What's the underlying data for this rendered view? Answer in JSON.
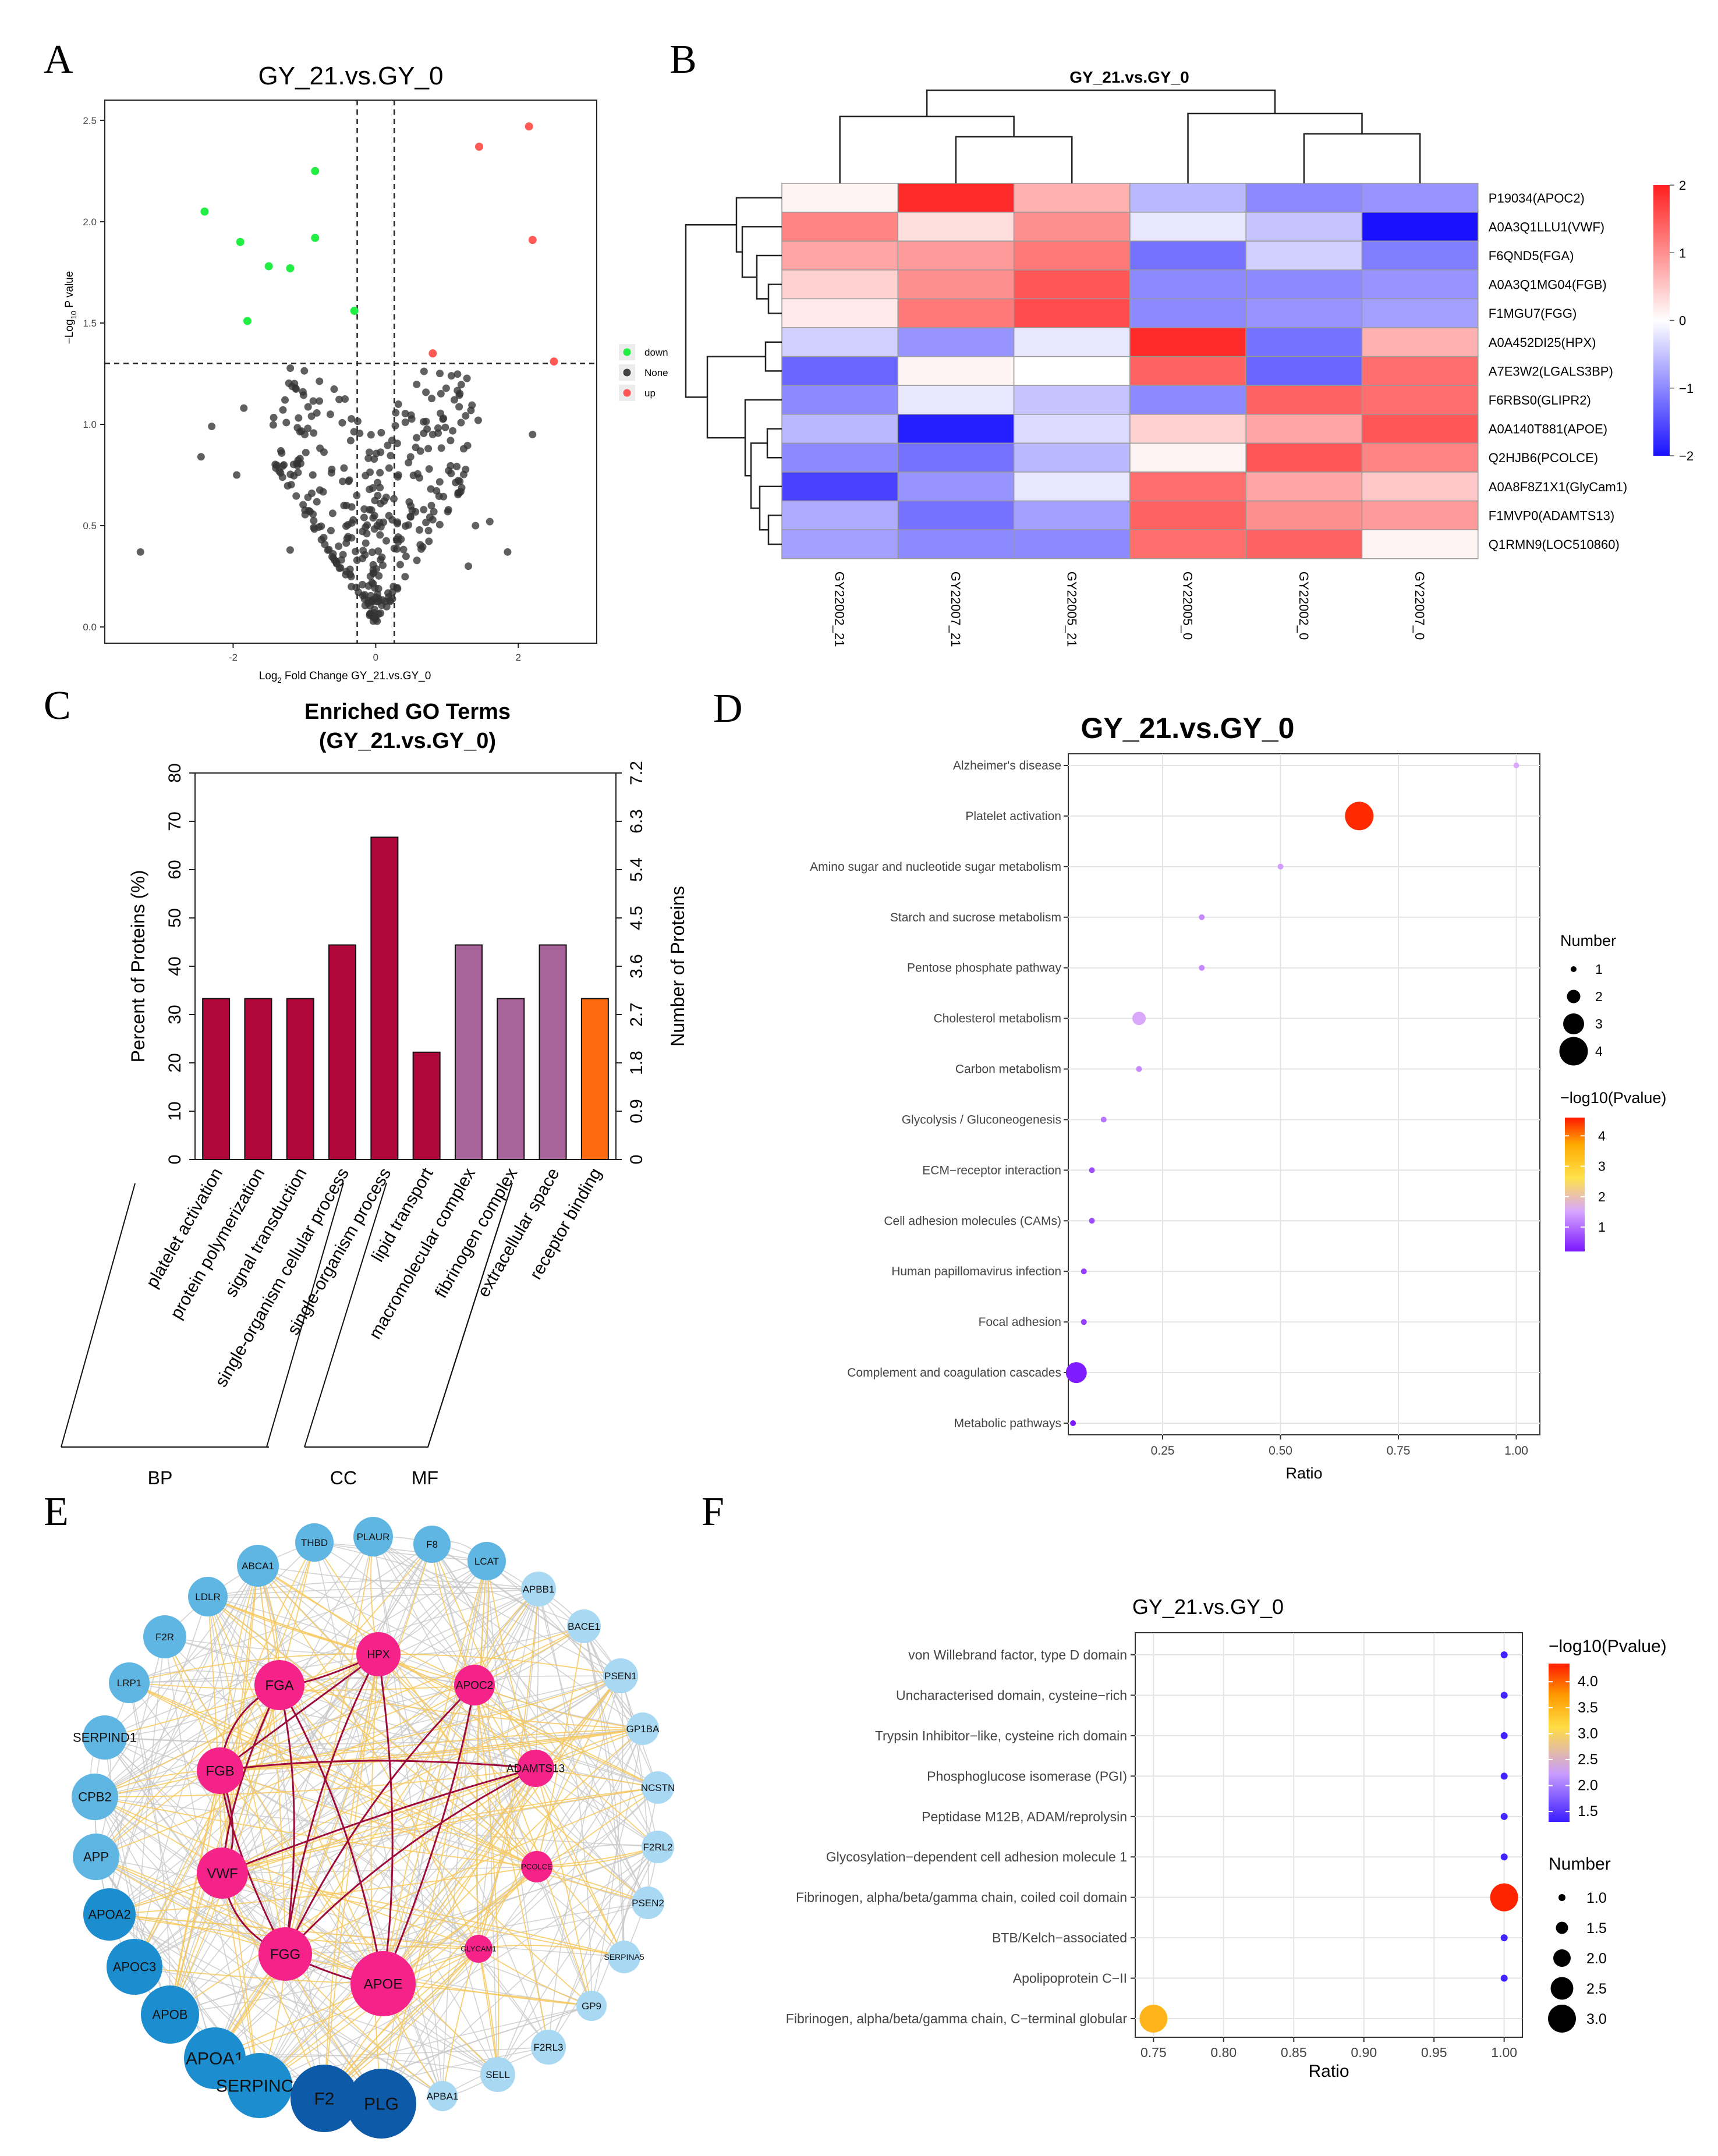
{
  "panels": {
    "A": "A",
    "B": "B",
    "C": "C",
    "D": "D",
    "E": "E",
    "F": "F"
  },
  "chart_data": [
    {
      "panel": "A",
      "type": "scatter",
      "title": "GY_21.vs.GY_0",
      "xlabel_main": "Log",
      "xlabel_sub": "2",
      "xlabel_rest": " Fold Change GY_21.vs.GY_0",
      "ylabel_pre": "−Log",
      "ylabel_sub": "10",
      "ylabel_rest": " P value",
      "xlim": [
        -3.8,
        3.1
      ],
      "ylim": [
        -0.08,
        2.6
      ],
      "xticks": [
        -2,
        0,
        2
      ],
      "xtick_labels": [
        "-2",
        "0",
        "2"
      ],
      "yticks": [
        0,
        0.5,
        1,
        1.5,
        2,
        2.5
      ],
      "ytick_labels": [
        "0.0",
        "0.5",
        "1.0",
        "1.5",
        "2.0",
        "2.5"
      ],
      "vlines": [
        -0.26,
        0.26
      ],
      "hline": 1.301,
      "legend": [
        {
          "label": "down",
          "color": "#22ee44"
        },
        {
          "label": "None",
          "color": "#444444"
        },
        {
          "label": "up",
          "color": "#ff5555"
        }
      ],
      "down": [
        [
          -2.4,
          2.05
        ],
        [
          -1.9,
          1.9
        ],
        [
          -0.85,
          2.25
        ],
        [
          -0.85,
          1.92
        ],
        [
          -1.5,
          1.78
        ],
        [
          -1.2,
          1.77
        ],
        [
          -1.8,
          1.51
        ],
        [
          -0.3,
          1.56
        ]
      ],
      "up": [
        [
          2.15,
          2.47
        ],
        [
          1.45,
          2.37
        ],
        [
          2.2,
          1.91
        ],
        [
          0.8,
          1.35
        ],
        [
          2.5,
          1.31
        ]
      ]
    },
    {
      "panel": "B",
      "type": "heatmap",
      "title": "GY_21.vs.GY_0",
      "rows": [
        "P19034(APOC2)",
        "A0A3Q1LLU1(VWF)",
        "F6QND5(FGA)",
        "A0A3Q1MG04(FGB)",
        "F1MGU7(FGG)",
        "A0A452DI25(HPX)",
        "A7E3W2(LGALS3BP)",
        "F6RBS0(GLIPR2)",
        "A0A140T881(APOE)",
        "Q2HJB6(PCOLCE)",
        "A0A8F8Z1X1(GlyCam1)",
        "F1MVP0(ADAMTS13)",
        "Q1RMN9(LOC510860)"
      ],
      "columns": [
        "GY22002_21",
        "GY22007_21",
        "GY22005_21",
        "GY22005_0",
        "GY22002_0",
        "GY22007_0"
      ],
      "values": [
        [
          0.1,
          1.9,
          0.7,
          -0.6,
          -1.0,
          -0.9
        ],
        [
          1.1,
          0.3,
          1.0,
          -0.2,
          -0.5,
          -2.0
        ],
        [
          0.8,
          0.9,
          1.2,
          -1.2,
          -0.4,
          -1.1
        ],
        [
          0.4,
          1.0,
          1.5,
          -1.0,
          -1.0,
          -0.9
        ],
        [
          0.2,
          1.2,
          1.6,
          -1.0,
          -0.9,
          -0.8
        ],
        [
          -0.4,
          -0.9,
          -0.2,
          1.9,
          -1.2,
          0.7
        ],
        [
          -1.3,
          0.1,
          0.0,
          1.4,
          -1.3,
          1.3
        ],
        [
          -1.0,
          -0.2,
          -0.5,
          -1.0,
          1.4,
          1.3
        ],
        [
          -0.6,
          -1.9,
          -0.3,
          0.4,
          0.8,
          1.5
        ],
        [
          -1.0,
          -1.2,
          -0.6,
          0.1,
          1.5,
          1.1
        ],
        [
          -1.6,
          -0.9,
          -0.2,
          1.3,
          0.8,
          0.5
        ],
        [
          -0.7,
          -1.2,
          -0.8,
          1.4,
          1.0,
          0.9
        ],
        [
          -0.8,
          -1.0,
          -1.0,
          1.3,
          1.4,
          0.1
        ]
      ],
      "legend_ticks": [
        2,
        1,
        0,
        -1,
        -2
      ],
      "legend_labels": [
        "2",
        "1",
        "0",
        "−1",
        "−2"
      ],
      "range": [
        -2,
        2
      ]
    },
    {
      "panel": "C",
      "type": "bar",
      "title": "Enriched GO Terms",
      "subtitle": "(GY_21.vs.GY_0)",
      "categories": [
        "platelet activation",
        "protein polymerization",
        "signal transduction",
        "single-organism cellular process",
        "single-organism process",
        "lipid transport",
        "macromolecular complex",
        "fibrinogen complex",
        "extracellular space",
        "receptor binding"
      ],
      "values": [
        33.3,
        33.3,
        33.3,
        44.4,
        66.7,
        22.2,
        44.4,
        33.3,
        44.4,
        33.3
      ],
      "groups": [
        "BP",
        "BP",
        "BP",
        "BP",
        "BP",
        "BP",
        "CC",
        "CC",
        "CC",
        "MF"
      ],
      "group_labels": [
        "BP",
        "CC",
        "MF"
      ],
      "group_colors": {
        "BP": "#b0073a",
        "CC": "#a8649a",
        "MF": "#ff6a10"
      },
      "ylabel": "Percent of Proteins (%)",
      "ylabel_right": "Number of Proteins",
      "ylim": [
        0,
        80
      ],
      "yticks": [
        0,
        10,
        20,
        30,
        40,
        50,
        60,
        70,
        80
      ],
      "ytick_labels": [
        "0",
        "10",
        "20",
        "30",
        "40",
        "50",
        "60",
        "70",
        "80"
      ],
      "yticks_right": [
        "0",
        "0.9",
        "1.8",
        "2.7",
        "3.6",
        "4.5",
        "5.4",
        "6.3",
        "7.2"
      ]
    },
    {
      "panel": "D",
      "type": "scatter",
      "title": "GY_21.vs.GY_0",
      "terms": [
        "Alzheimer's disease",
        "Platelet activation",
        "Amino sugar and nucleotide sugar metabolism",
        "Starch and sucrose metabolism",
        "Pentose phosphate pathway",
        "Cholesterol metabolism",
        "Carbon metabolism",
        "Glycolysis / Gluconeogenesis",
        "ECM−receptor interaction",
        "Cell adhesion molecules (CAMs)",
        "Human papillomavirus infection",
        "Focal adhesion",
        "Complement and coagulation cascades",
        "Metabolic pathways"
      ],
      "ratio": [
        1.0,
        0.667,
        0.5,
        0.333,
        0.333,
        0.2,
        0.2,
        0.125,
        0.1,
        0.1,
        0.083,
        0.083,
        0.067,
        0.06
      ],
      "number": [
        1,
        4,
        1,
        1,
        1,
        2,
        1,
        1,
        1,
        1,
        1,
        1,
        3,
        1
      ],
      "neglog10p": [
        1.55,
        4.5,
        1.45,
        1.25,
        1.25,
        1.55,
        1.25,
        1.05,
        0.7,
        0.7,
        0.55,
        0.55,
        0.25,
        0.2
      ],
      "xlabel": "Ratio",
      "xlim": [
        0.05,
        1.05
      ],
      "xticks": [
        0.25,
        0.5,
        0.75,
        1.0
      ],
      "xtick_labels": [
        "0.25",
        "0.50",
        "0.75",
        "1.00"
      ],
      "size_legend_title": "Number",
      "size_legend": [
        "1",
        "2",
        "3",
        "4"
      ],
      "color_legend_title": "−log10(Pvalue)",
      "color_range": [
        0.2,
        4.6
      ],
      "color_ticks": [
        1,
        2,
        3,
        4
      ],
      "color_tick_labels": [
        "1",
        "2",
        "3",
        "4"
      ]
    },
    {
      "panel": "F",
      "type": "scatter",
      "title": "GY_21.vs.GY_0",
      "terms": [
        "von Willebrand factor, type D domain",
        "Uncharacterised domain, cysteine−rich",
        "Trypsin Inhibitor−like, cysteine rich domain",
        "Phosphoglucose isomerase (PGI)",
        "Peptidase M12B, ADAM/reprolysin",
        "Glycosylation−dependent cell adhesion molecule 1",
        "Fibrinogen, alpha/beta/gamma chain, coiled coil domain",
        "BTB/Kelch−associated",
        "Apolipoprotein C−II",
        "Fibrinogen, alpha/beta/gamma chain, C−terminal globular"
      ],
      "ratio": [
        1.0,
        1.0,
        1.0,
        1.0,
        1.0,
        1.0,
        1.0,
        1.0,
        1.0,
        0.75
      ],
      "number": [
        1,
        1,
        1,
        1,
        1,
        1,
        3,
        1,
        1,
        3
      ],
      "neglog10p": [
        1.35,
        1.35,
        1.35,
        1.35,
        1.35,
        1.35,
        4.3,
        1.35,
        1.35,
        3.5
      ],
      "xlabel": "Ratio",
      "xlim": [
        0.737,
        1.013
      ],
      "xticks": [
        0.75,
        0.8,
        0.85,
        0.9,
        0.95,
        1.0
      ],
      "xtick_labels": [
        "0.75",
        "0.80",
        "0.85",
        "0.90",
        "0.95",
        "1.00"
      ],
      "color_legend_title": "−log10(Pvalue)",
      "color_range": [
        1.3,
        4.35
      ],
      "color_ticks": [
        1.5,
        2.0,
        2.5,
        3.0,
        3.5,
        4.0
      ],
      "color_tick_labels": [
        "1.5",
        "2.0",
        "2.5",
        "3.0",
        "3.5",
        "4.0"
      ],
      "size_legend_title": "Number",
      "size_legend": [
        "1.0",
        "1.5",
        "2.0",
        "2.5",
        "3.0"
      ]
    }
  ],
  "network": {
    "panel": "E",
    "core": [
      "HPX",
      "FGA",
      "APOC2",
      "FGB",
      "ADAMTS13",
      "PCOLCE",
      "VWF",
      "GLYCAM1",
      "FGG",
      "APOE"
    ],
    "outer": [
      "PLAUR",
      "THBD",
      "F8",
      "ABCA1",
      "LCAT",
      "LDLR",
      "APBB1",
      "F2R",
      "BACE1",
      "LRP1",
      "PSEN1",
      "SERPIND1",
      "GP1BA",
      "CPB2",
      "NCSTN",
      "APP",
      "F2RL2",
      "APOA2",
      "PSEN2",
      "APOC3",
      "SERPINA5",
      "APOB",
      "GP9",
      "APOA1",
      "F2RL3",
      "SERPINC1",
      "SELL",
      "F2",
      "APBA1",
      "PLG"
    ]
  }
}
